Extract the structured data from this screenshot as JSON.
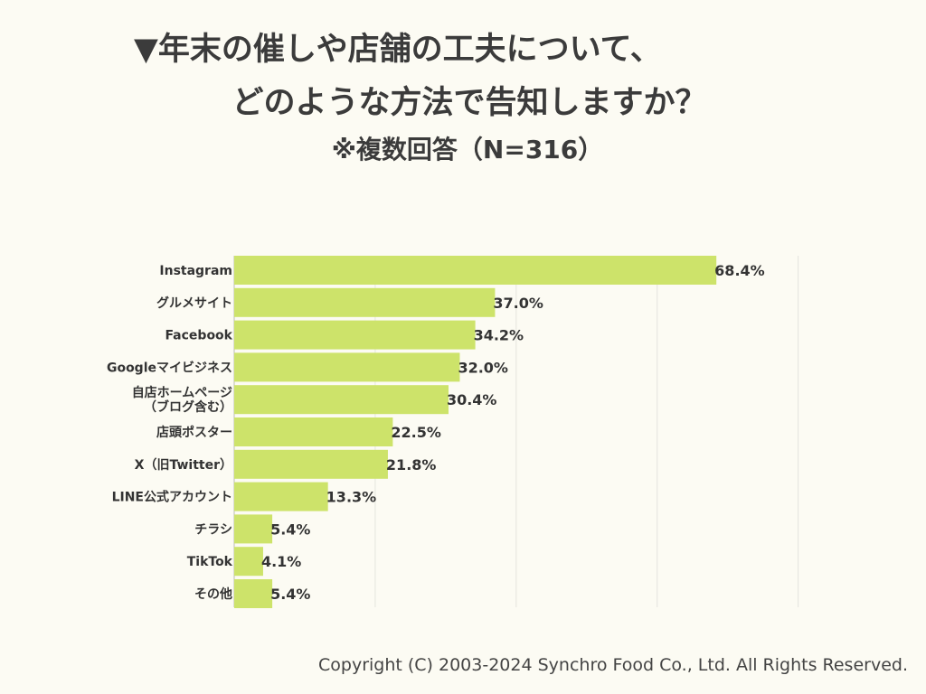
{
  "title": {
    "line1": "▼年末の催しや店舗の工夫について、",
    "line2": "どのような方法で告知しますか？",
    "subtitle": "※複数回答（N=316）"
  },
  "copyright": "Copyright (C) 2003-2024  Synchro Food Co., Ltd. All Rights Reserved.",
  "colors": {
    "bar": "#cde36a",
    "grid": "#e4e4de",
    "axis": "#c8c8c0",
    "background": "#fcfbf3",
    "text": "#333333"
  },
  "chart_data": {
    "type": "bar",
    "orientation": "horizontal",
    "title": "▼年末の催しや店舗の工夫について、どのような方法で告知しますか？",
    "subtitle": "※複数回答（N=316）",
    "xlabel": "",
    "ylabel": "",
    "xlim": [
      0,
      100
    ],
    "grid": true,
    "value_suffix": "%",
    "categories": [
      [
        "Instagram"
      ],
      [
        "グルメサイト"
      ],
      [
        "Facebook"
      ],
      [
        "Googleマイビジネス"
      ],
      [
        "自店ホームページ",
        "（ブログ含む）"
      ],
      [
        "店頭ポスター"
      ],
      [
        "X（旧Twitter）"
      ],
      [
        "LINE公式アカウント"
      ],
      [
        "チラシ"
      ],
      [
        "TikTok"
      ],
      [
        "その他"
      ]
    ],
    "values": [
      68.4,
      37.0,
      34.2,
      32.0,
      30.4,
      22.5,
      21.8,
      13.3,
      5.4,
      4.1,
      5.4
    ],
    "labels": [
      "68.4%",
      "37.0%",
      "34.2%",
      "32.0%",
      "30.4%",
      "22.5%",
      "21.8%",
      "13.3%",
      "5.4%",
      "4.1%",
      "5.4%"
    ]
  }
}
